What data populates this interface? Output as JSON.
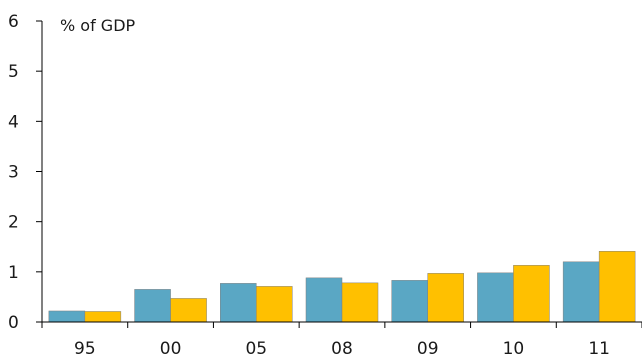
{
  "chart_data": {
    "type": "bar",
    "categories": [
      "95",
      "00",
      "05",
      "08",
      "09",
      "10",
      "11"
    ],
    "series": [
      {
        "values": [
          0.22,
          0.65,
          0.77,
          0.88,
          0.83,
          0.98,
          1.2
        ]
      },
      {
        "values": [
          0.21,
          0.47,
          0.71,
          0.78,
          0.97,
          1.13,
          1.41
        ]
      }
    ],
    "colors": [
      "#5aa7c4",
      "#ffc000"
    ],
    "ylabel": "% of GDP",
    "ylim": [
      0,
      6
    ],
    "yticks": [
      0,
      1,
      2,
      3,
      4,
      5,
      6
    ],
    "grid": false,
    "legend": "none"
  }
}
